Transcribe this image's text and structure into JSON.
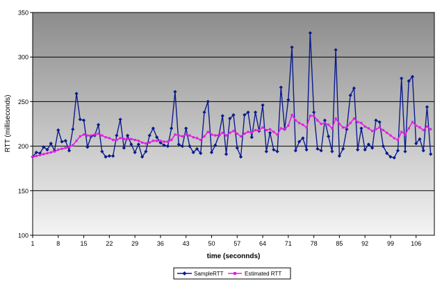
{
  "chart_data": {
    "type": "line",
    "title": "",
    "xlabel": "time (seconnds)",
    "ylabel": "RTT (milliseconds)",
    "ylim": [
      100,
      350
    ],
    "yticks": [
      100,
      150,
      200,
      250,
      300,
      350
    ],
    "xticks": [
      1,
      8,
      15,
      22,
      29,
      36,
      43,
      50,
      57,
      64,
      71,
      78,
      85,
      92,
      99,
      106
    ],
    "xlim": [
      1,
      111
    ],
    "grid": true,
    "legend_position": "bottom",
    "colors": {
      "sample": "#0a1a8c",
      "estimated": "#e020e0",
      "grid": "#000000",
      "plot_top": "#8c8c8c",
      "plot_bottom": "#f4f4f4"
    },
    "series": [
      {
        "name": "SampleRTT",
        "marker": "diamond",
        "values": [
          188,
          193,
          192,
          199,
          196,
          203,
          195,
          218,
          205,
          206,
          195,
          219,
          259,
          230,
          229,
          199,
          211,
          212,
          224,
          194,
          188,
          189,
          189,
          212,
          230,
          198,
          212,
          202,
          193,
          202,
          188,
          194,
          212,
          220,
          210,
          204,
          201,
          200,
          220,
          261,
          202,
          200,
          220,
          200,
          193,
          197,
          192,
          238,
          250,
          193,
          201,
          212,
          234,
          191,
          231,
          235,
          198,
          188,
          235,
          238,
          210,
          238,
          217,
          246,
          194,
          215,
          196,
          194,
          266,
          219,
          252,
          311,
          195,
          205,
          209,
          196,
          327,
          238,
          197,
          195,
          229,
          211,
          194,
          308,
          189,
          197,
          219,
          257,
          265,
          196,
          220,
          196,
          202,
          198,
          229,
          227,
          200,
          192,
          188,
          187,
          195,
          276,
          194,
          273,
          278,
          203,
          208,
          195,
          244,
          191
        ]
      },
      {
        "name": "Estimated RTT",
        "marker": "square",
        "values": [
          188,
          189,
          190,
          191,
          192,
          193,
          194,
          196,
          197,
          198,
          199,
          201,
          206,
          211,
          213,
          212,
          212,
          213,
          214,
          212,
          210,
          209,
          207,
          207,
          209,
          208,
          208,
          208,
          207,
          206,
          204,
          203,
          204,
          206,
          206,
          206,
          205,
          205,
          207,
          213,
          212,
          211,
          213,
          212,
          210,
          209,
          207,
          211,
          216,
          213,
          212,
          212,
          215,
          212,
          215,
          217,
          214,
          211,
          214,
          216,
          215,
          218,
          218,
          221,
          218,
          219,
          216,
          213,
          220,
          219,
          223,
          235,
          229,
          226,
          224,
          221,
          234,
          234,
          229,
          225,
          226,
          224,
          220,
          231,
          225,
          221,
          221,
          226,
          231,
          227,
          226,
          222,
          220,
          217,
          219,
          221,
          218,
          215,
          212,
          209,
          207,
          216,
          213,
          220,
          227,
          223,
          221,
          218,
          222,
          219
        ]
      }
    ]
  }
}
